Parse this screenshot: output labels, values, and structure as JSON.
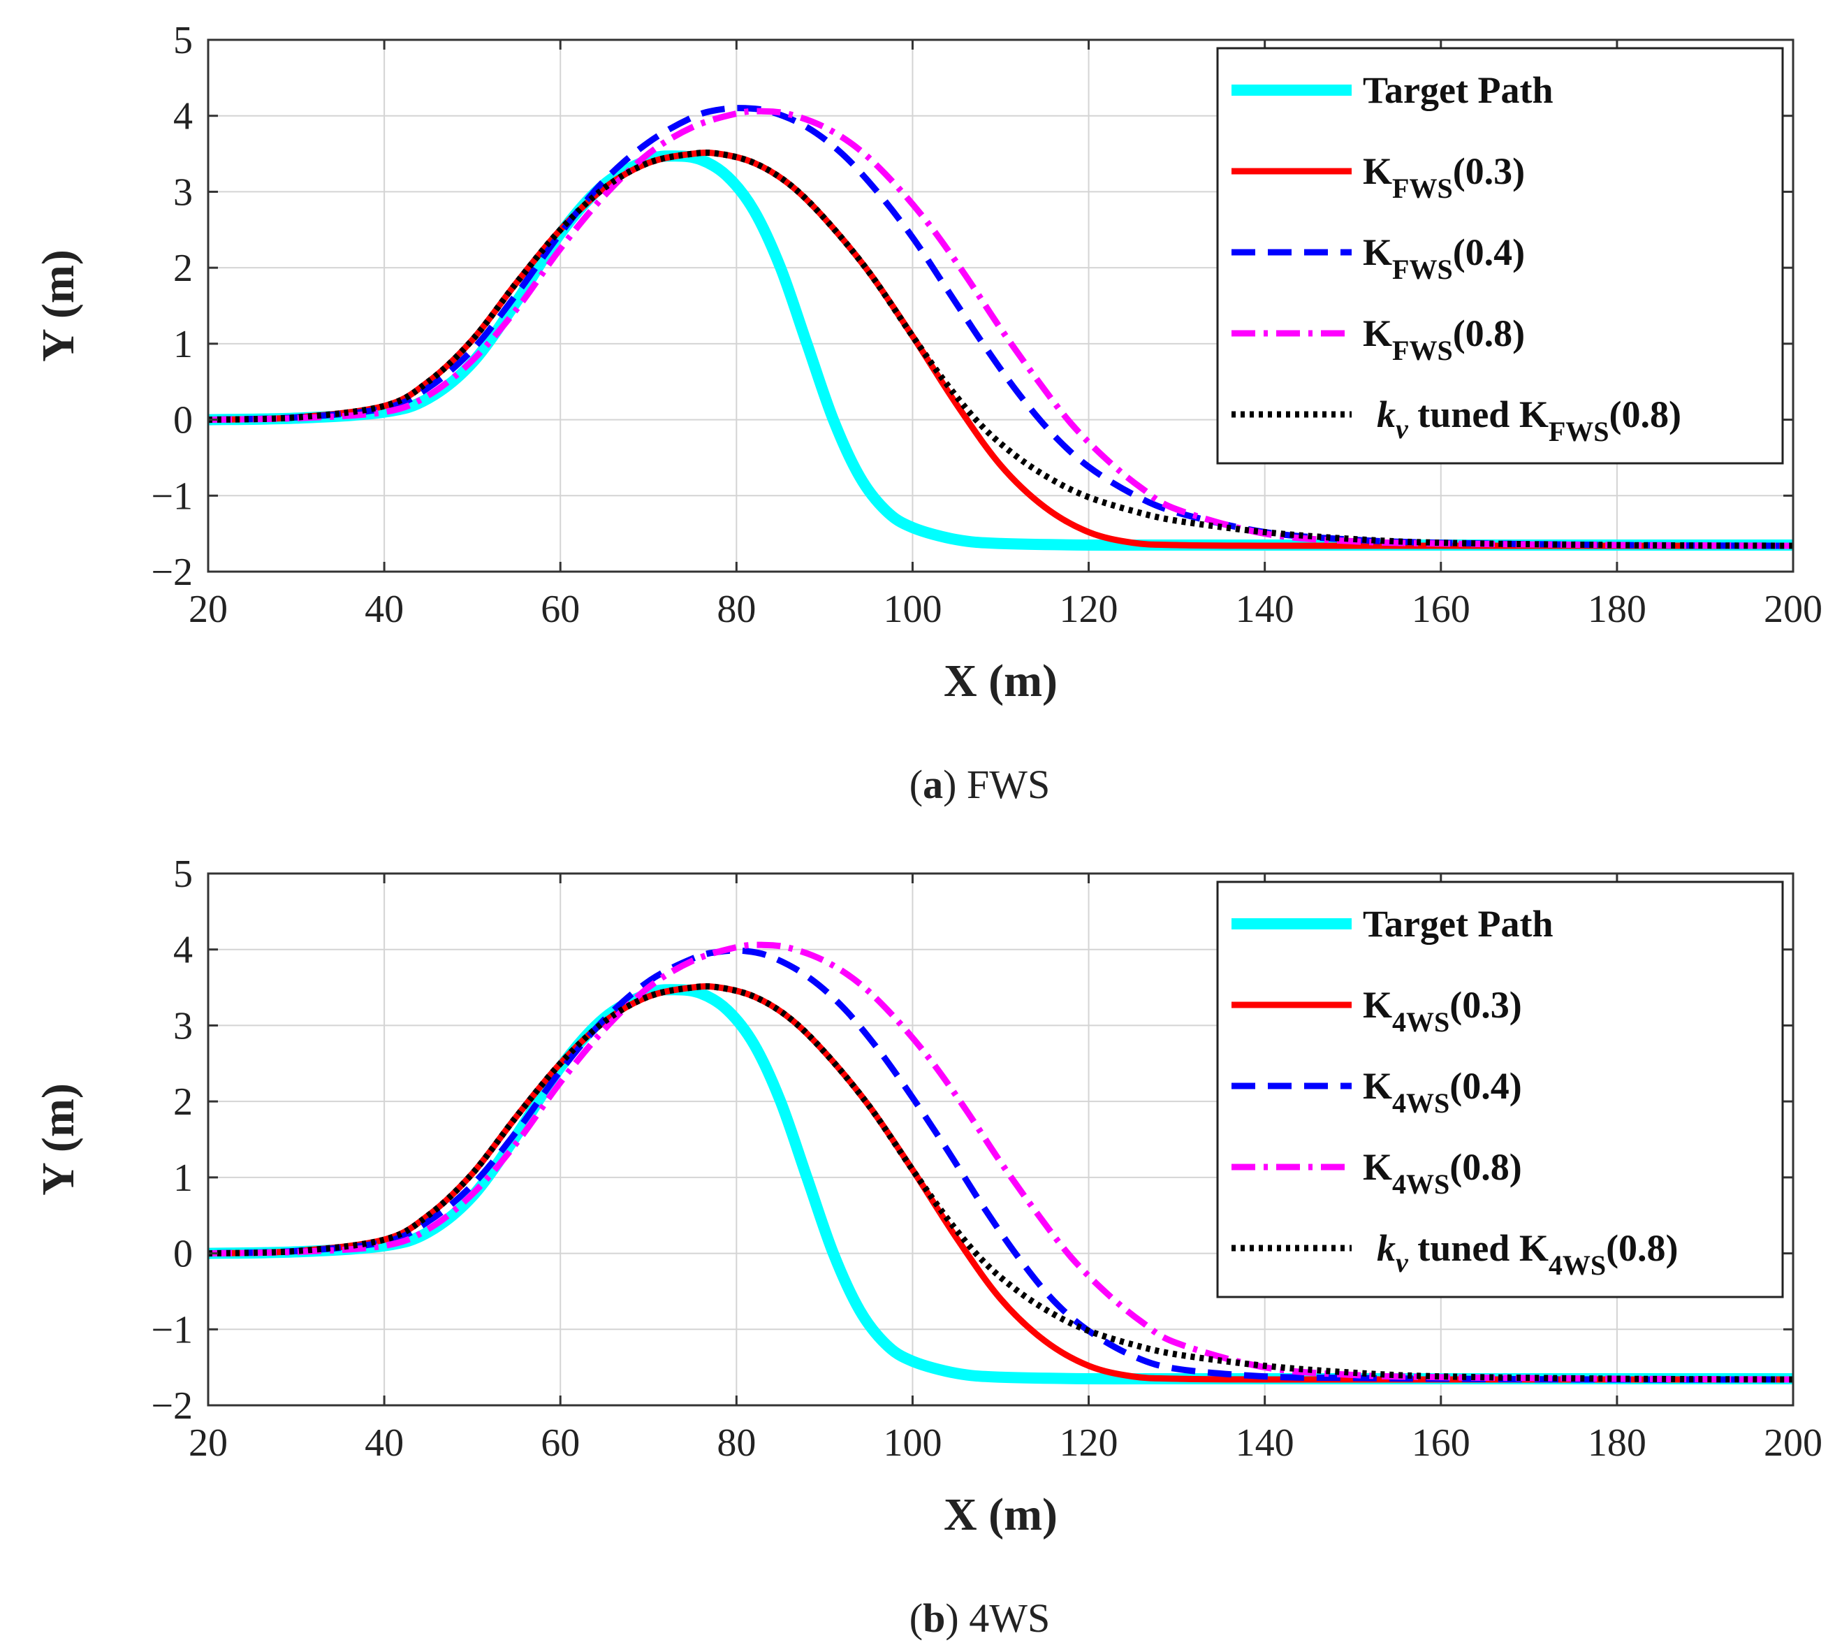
{
  "chart_data": [
    {
      "type": "line",
      "caption_tag": "a",
      "caption_text": " FWS",
      "xlabel": "X (m)",
      "ylabel": "Y (m)",
      "xlim": [
        20,
        200
      ],
      "ylim": [
        -2,
        5
      ],
      "xticks": [
        20,
        40,
        60,
        80,
        100,
        120,
        140,
        160,
        180,
        200
      ],
      "yticks": [
        -2,
        -1,
        0,
        1,
        2,
        3,
        4,
        5
      ],
      "xtick_labels": [
        "20",
        "40",
        "60",
        "80",
        "100",
        "120",
        "140",
        "160",
        "180",
        "200"
      ],
      "ytick_labels": [
        "−2",
        "−1",
        "0",
        "1",
        "2",
        "3",
        "4",
        "5"
      ],
      "grid": true,
      "legend_position": "top-right",
      "series": [
        {
          "name": "Target Path",
          "color": "#00ffff",
          "style": "solid-thick",
          "x": [
            20,
            30,
            40,
            45,
            50,
            55,
            60,
            65,
            70,
            73,
            76,
            79,
            82,
            85,
            88,
            91,
            94,
            97,
            100,
            105,
            110,
            120,
            130,
            150,
            200
          ],
          "y": [
            0,
            0.02,
            0.1,
            0.28,
            0.75,
            1.55,
            2.45,
            3.1,
            3.42,
            3.47,
            3.42,
            3.2,
            2.75,
            2.0,
            1.0,
            0.0,
            -0.75,
            -1.2,
            -1.42,
            -1.58,
            -1.63,
            -1.65,
            -1.65,
            -1.65,
            -1.65
          ]
        },
        {
          "name": "K_FWS(0.3)",
          "color": "#ff0000",
          "style": "solid",
          "x": [
            20,
            30,
            40,
            45,
            50,
            55,
            60,
            65,
            70,
            75,
            78,
            82,
            86,
            90,
            95,
            100,
            105,
            110,
            115,
            120,
            125,
            130,
            140,
            160,
            200
          ],
          "y": [
            0,
            0.03,
            0.18,
            0.5,
            1.05,
            1.8,
            2.5,
            3.05,
            3.38,
            3.5,
            3.5,
            3.38,
            3.1,
            2.65,
            1.95,
            1.1,
            0.2,
            -0.6,
            -1.15,
            -1.48,
            -1.62,
            -1.65,
            -1.66,
            -1.66,
            -1.66
          ]
        },
        {
          "name": "K_FWS(0.4)",
          "color": "#0000ff",
          "style": "dashed",
          "x": [
            20,
            30,
            40,
            45,
            50,
            55,
            60,
            65,
            70,
            75,
            78,
            81,
            84,
            88,
            92,
            96,
            100,
            104,
            108,
            112,
            116,
            120,
            125,
            130,
            140,
            150,
            160,
            180,
            200
          ],
          "y": [
            0,
            0.03,
            0.15,
            0.42,
            0.92,
            1.65,
            2.45,
            3.15,
            3.65,
            3.98,
            4.08,
            4.1,
            4.05,
            3.85,
            3.5,
            3.0,
            2.4,
            1.7,
            1.0,
            0.35,
            -0.2,
            -0.62,
            -0.98,
            -1.22,
            -1.48,
            -1.58,
            -1.62,
            -1.65,
            -1.66
          ]
        },
        {
          "name": "K_FWS(0.8)",
          "color": "#ff00ff",
          "style": "dashdot",
          "x": [
            20,
            30,
            40,
            45,
            50,
            55,
            60,
            65,
            70,
            75,
            80,
            83,
            86,
            90,
            94,
            98,
            102,
            106,
            110,
            114,
            118,
            122,
            126,
            130,
            140,
            150,
            160,
            180,
            200
          ],
          "y": [
            0,
            0.02,
            0.1,
            0.32,
            0.78,
            1.45,
            2.25,
            2.95,
            3.5,
            3.85,
            4.03,
            4.06,
            4.02,
            3.85,
            3.55,
            3.1,
            2.55,
            1.9,
            1.2,
            0.55,
            -0.05,
            -0.52,
            -0.9,
            -1.18,
            -1.5,
            -1.6,
            -1.63,
            -1.65,
            -1.66
          ]
        },
        {
          "name": "k_v tuned K_FWS(0.8)",
          "color": "#000000",
          "style": "dotted",
          "x": [
            20,
            30,
            40,
            45,
            50,
            55,
            60,
            65,
            70,
            75,
            78,
            82,
            86,
            90,
            95,
            100,
            104,
            108,
            112,
            116,
            120,
            125,
            130,
            140,
            150,
            160,
            180,
            200
          ],
          "y": [
            0,
            0.03,
            0.18,
            0.5,
            1.05,
            1.8,
            2.5,
            3.05,
            3.38,
            3.5,
            3.5,
            3.38,
            3.1,
            2.65,
            1.95,
            1.1,
            0.45,
            -0.1,
            -0.5,
            -0.8,
            -1.02,
            -1.2,
            -1.33,
            -1.48,
            -1.57,
            -1.62,
            -1.65,
            -1.66
          ]
        }
      ],
      "legend": {
        "entries": [
          {
            "text": "Target Path"
          },
          {
            "main": "K",
            "sub": "FWS",
            "suffix": "(0.3)"
          },
          {
            "main": "K",
            "sub": "FWS",
            "suffix": "(0.4)"
          },
          {
            "main": "K",
            "sub": "FWS",
            "suffix": "(0.8)"
          },
          {
            "pre_italic": "k",
            "pre_sub": "v",
            "mid": " tuned K",
            "sub": "FWS",
            "suffix": "(0.8)"
          }
        ]
      }
    },
    {
      "type": "line",
      "caption_tag": "b",
      "caption_text": " 4WS",
      "xlabel": "X (m)",
      "ylabel": "Y (m)",
      "xlim": [
        20,
        200
      ],
      "ylim": [
        -2,
        5
      ],
      "xticks": [
        20,
        40,
        60,
        80,
        100,
        120,
        140,
        160,
        180,
        200
      ],
      "yticks": [
        -2,
        -1,
        0,
        1,
        2,
        3,
        4,
        5
      ],
      "xtick_labels": [
        "20",
        "40",
        "60",
        "80",
        "100",
        "120",
        "140",
        "160",
        "180",
        "200"
      ],
      "ytick_labels": [
        "−2",
        "−1",
        "0",
        "1",
        "2",
        "3",
        "4",
        "5"
      ],
      "grid": true,
      "legend_position": "top-right",
      "series": [
        {
          "name": "Target Path",
          "color": "#00ffff",
          "style": "solid-thick",
          "x": [
            20,
            30,
            40,
            45,
            50,
            55,
            60,
            65,
            70,
            73,
            76,
            79,
            82,
            85,
            88,
            91,
            94,
            97,
            100,
            105,
            110,
            120,
            130,
            150,
            200
          ],
          "y": [
            0,
            0.02,
            0.1,
            0.28,
            0.75,
            1.55,
            2.45,
            3.1,
            3.42,
            3.47,
            3.42,
            3.2,
            2.75,
            2.0,
            1.0,
            0.0,
            -0.75,
            -1.2,
            -1.42,
            -1.58,
            -1.63,
            -1.65,
            -1.65,
            -1.65,
            -1.65
          ]
        },
        {
          "name": "K_4WS(0.3)",
          "color": "#ff0000",
          "style": "solid",
          "x": [
            20,
            30,
            40,
            45,
            50,
            55,
            60,
            65,
            70,
            75,
            78,
            82,
            86,
            90,
            95,
            100,
            105,
            110,
            115,
            120,
            125,
            130,
            140,
            160,
            200
          ],
          "y": [
            0,
            0.03,
            0.18,
            0.5,
            1.05,
            1.8,
            2.5,
            3.05,
            3.38,
            3.5,
            3.5,
            3.38,
            3.1,
            2.65,
            1.95,
            1.1,
            0.2,
            -0.6,
            -1.15,
            -1.48,
            -1.62,
            -1.65,
            -1.66,
            -1.66,
            -1.66
          ]
        },
        {
          "name": "K_4WS(0.4)",
          "color": "#0000ff",
          "style": "dashed",
          "x": [
            20,
            30,
            40,
            45,
            50,
            55,
            60,
            65,
            70,
            75,
            78,
            81,
            84,
            88,
            92,
            96,
            100,
            104,
            108,
            112,
            116,
            120,
            125,
            130,
            140,
            150,
            160,
            180,
            200
          ],
          "y": [
            0,
            0.03,
            0.15,
            0.42,
            0.9,
            1.6,
            2.4,
            3.08,
            3.58,
            3.88,
            3.97,
            3.98,
            3.9,
            3.65,
            3.25,
            2.7,
            2.05,
            1.35,
            0.62,
            -0.05,
            -0.62,
            -1.02,
            -1.35,
            -1.52,
            -1.62,
            -1.64,
            -1.65,
            -1.66,
            -1.66
          ]
        },
        {
          "name": "K_4WS(0.8)",
          "color": "#ff00ff",
          "style": "dashdot",
          "x": [
            20,
            30,
            40,
            45,
            50,
            55,
            60,
            65,
            70,
            75,
            80,
            83,
            86,
            90,
            94,
            98,
            102,
            106,
            110,
            114,
            118,
            122,
            126,
            130,
            140,
            150,
            160,
            180,
            200
          ],
          "y": [
            0,
            0.02,
            0.1,
            0.32,
            0.78,
            1.45,
            2.25,
            2.95,
            3.5,
            3.85,
            4.03,
            4.06,
            4.02,
            3.85,
            3.55,
            3.1,
            2.55,
            1.9,
            1.2,
            0.55,
            -0.05,
            -0.52,
            -0.9,
            -1.18,
            -1.5,
            -1.6,
            -1.63,
            -1.65,
            -1.66
          ]
        },
        {
          "name": "k_v tuned K_4WS(0.8)",
          "color": "#000000",
          "style": "dotted",
          "x": [
            20,
            30,
            40,
            45,
            50,
            55,
            60,
            65,
            70,
            75,
            78,
            82,
            86,
            90,
            95,
            100,
            104,
            108,
            112,
            116,
            120,
            125,
            130,
            140,
            150,
            160,
            180,
            200
          ],
          "y": [
            0,
            0.03,
            0.18,
            0.5,
            1.05,
            1.8,
            2.5,
            3.05,
            3.38,
            3.5,
            3.5,
            3.38,
            3.1,
            2.65,
            1.95,
            1.1,
            0.45,
            -0.1,
            -0.5,
            -0.8,
            -1.02,
            -1.2,
            -1.33,
            -1.48,
            -1.57,
            -1.62,
            -1.65,
            -1.66
          ]
        }
      ],
      "legend": {
        "entries": [
          {
            "text": "Target Path"
          },
          {
            "main": "K",
            "sub": "4WS",
            "suffix": "(0.3)"
          },
          {
            "main": "K",
            "sub": "4WS",
            "suffix": "(0.4)"
          },
          {
            "main": "K",
            "sub": "4WS",
            "suffix": "(0.8)"
          },
          {
            "pre_italic": "k",
            "pre_sub": "v",
            "mid": " tuned K",
            "sub": "4WS",
            "suffix": "(0.8)"
          }
        ]
      }
    }
  ]
}
